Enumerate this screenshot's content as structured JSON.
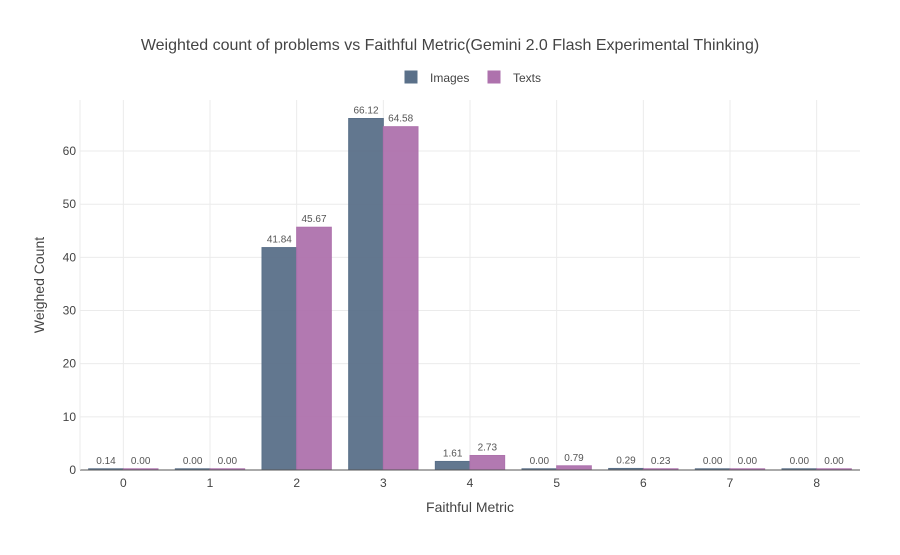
{
  "chart_data": {
    "type": "bar",
    "title": "Weighted count of problems vs Faithful Metric(Gemini 2.0 Flash Experimental Thinking)",
    "xlabel": "Faithful Metric",
    "ylabel": "Weighed Count",
    "categories": [
      "0",
      "1",
      "2",
      "3",
      "4",
      "5",
      "6",
      "7",
      "8"
    ],
    "series": [
      {
        "name": "Images",
        "color": "#5a7089",
        "values": [
          0.14,
          0.0,
          41.84,
          66.12,
          1.61,
          0.0,
          0.29,
          0.0,
          0.0
        ],
        "labels": [
          "0.14",
          "0.00",
          "41.84",
          "66.12",
          "1.61",
          "0.00",
          "0.29",
          "0.00",
          "0.00"
        ]
      },
      {
        "name": "Texts",
        "color": "#ae72ad",
        "values": [
          0.0,
          0.0,
          45.67,
          64.58,
          2.73,
          0.79,
          0.23,
          0.0,
          0.0
        ],
        "labels": [
          "0.00",
          "0.00",
          "45.67",
          "64.58",
          "2.73",
          "0.79",
          "0.23",
          "0.00",
          "0.00"
        ]
      }
    ],
    "ylim": [
      0,
      69.6
    ],
    "yticks": [
      0,
      10,
      20,
      30,
      40,
      50,
      60
    ],
    "grid": true,
    "legend_position": "top-center"
  }
}
